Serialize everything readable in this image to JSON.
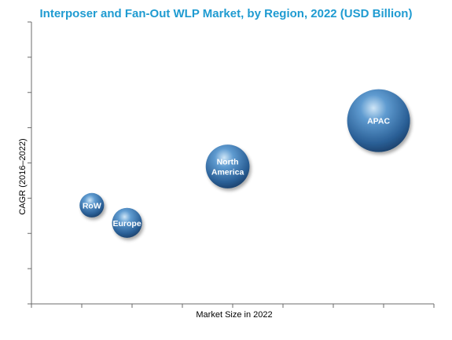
{
  "chart_data": {
    "type": "scatter",
    "variant": "bubble",
    "title": "Interposer and Fan-Out WLP Market, by Region, 2022 (USD Billion)",
    "xlabel": "Market Size in 2022",
    "ylabel": "CAGR (2016–2022)",
    "xlim": [
      0,
      8
    ],
    "ylim": [
      0,
      8
    ],
    "grid": false,
    "axis_numbers_shown": false,
    "bubble_color": "#2e6fad",
    "title_color": "#1f9bd1",
    "points": [
      {
        "label": "RoW",
        "x": 1.2,
        "y": 2.8,
        "size": 1.0
      },
      {
        "label": "Europe",
        "x": 1.9,
        "y": 2.3,
        "size": 1.5
      },
      {
        "label": "North America",
        "x": 3.9,
        "y": 3.9,
        "size": 3.2
      },
      {
        "label": "APAC",
        "x": 6.9,
        "y": 5.2,
        "size": 6.6
      }
    ]
  }
}
